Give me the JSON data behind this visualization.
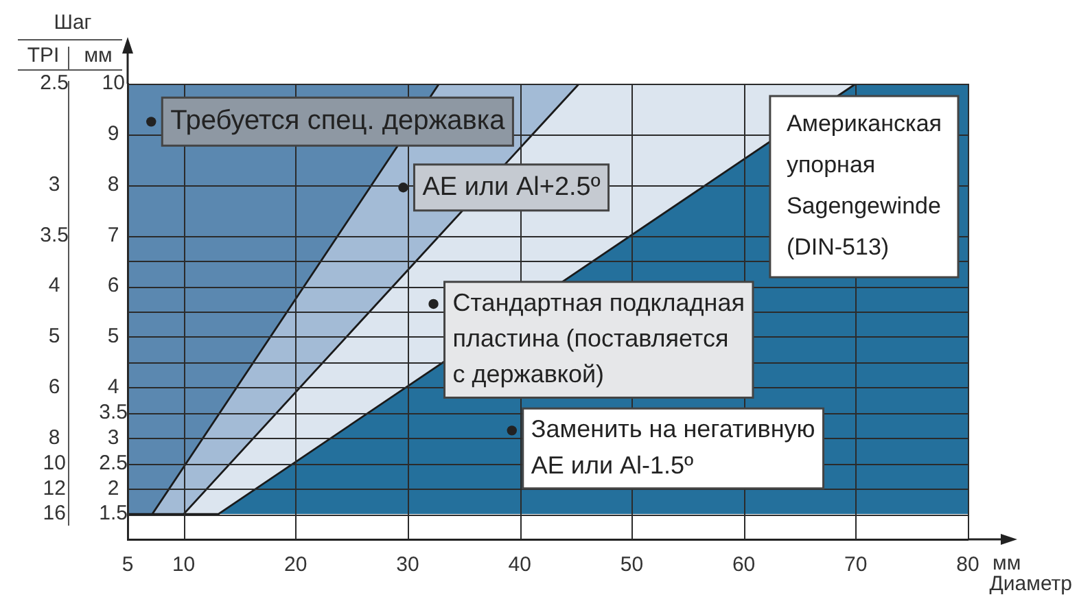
{
  "chart_data": {
    "type": "area",
    "xlabel": "Диаметр",
    "ylabel": "мм",
    "xlim": [
      5,
      80
    ],
    "xticks": [
      5,
      10,
      20,
      30,
      40,
      50,
      60,
      70,
      80
    ],
    "ylim": [
      1,
      10
    ],
    "yticks": [
      10,
      9,
      8,
      7,
      {
        "value": 6.5,
        "label": null
      },
      6,
      {
        "value": 5.5,
        "label": null
      },
      5,
      {
        "value": 4.5,
        "label": null
      },
      4,
      3.5,
      3,
      2.5,
      2,
      1.5
    ],
    "series": [
      {
        "color": "#5b88b0",
        "x": [
          5,
          5,
          7.2,
          32.8
        ],
        "values": [
          10,
          1.5,
          1.5,
          10
        ]
      },
      {
        "color": "#a3bbd6",
        "x": [
          5,
          5,
          10,
          45.3
        ],
        "values": [
          10,
          1.5,
          1.5,
          10
        ]
      },
      {
        "color": "#dce5ef",
        "x": [
          5,
          5,
          13.1,
          70
        ],
        "values": [
          10,
          1.5,
          1.5,
          10
        ]
      }
    ],
    "bands": [
      {
        "axis": "y",
        "from": 1.5,
        "to": 10,
        "color": "#24709c"
      }
    ],
    "grid": true,
    "legend": false,
    "y2_categories": [
      "2.5",
      null,
      null,
      null,
      "3",
      null,
      "3.5",
      null,
      "4",
      null,
      "5",
      null,
      "6",
      null,
      "8",
      "10",
      "12",
      "16",
      null
    ],
    "annotations": [
      "Шаг",
      "мм",
      "Американская\nупорная\nSagengewinde\n(DIN-513)",
      "TPI",
      {
        "text": "Требуется спец. державка",
        "x": 7.1,
        "y": 9.25
      },
      {
        "text": "AE или Al+2.5º",
        "x": 29.6,
        "y": 7.95
      },
      {
        "text": "Стандартная подкладная\nпластина (поставляется\nс державкой)",
        "x": 32.3,
        "y": 5.65
      },
      {
        "text": "Заменить на негативную\nAE или Al-1.5º",
        "x": 39.3,
        "y": 3.15
      }
    ]
  }
}
